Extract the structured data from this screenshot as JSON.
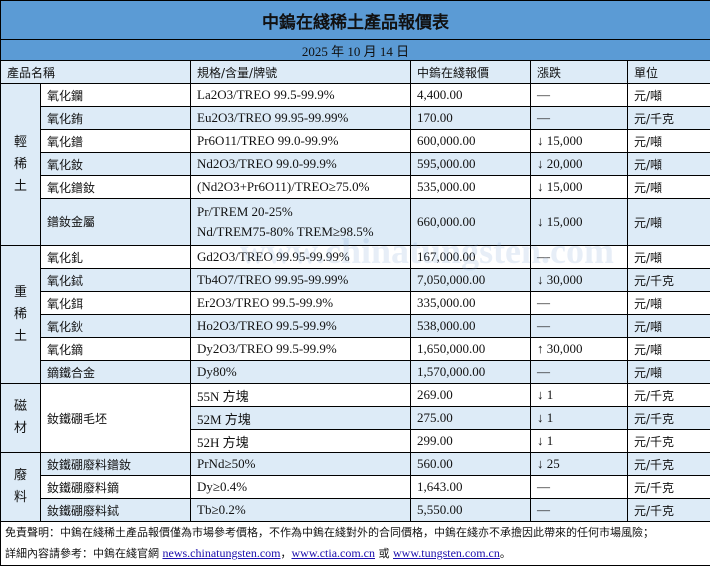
{
  "title": "中鎢在綫稀土產品報價表",
  "date": "2025 年 10 月 14 日",
  "headers": [
    "產品名稱",
    "規格/含量/牌號",
    "中鎢在綫報價",
    "漲跌",
    "單位"
  ],
  "groups": {
    "light": "輕稀土",
    "heavy": "重稀土",
    "magnet": "磁材",
    "waste": "廢料"
  },
  "rows": [
    {
      "name": "氧化鑭",
      "spec": "La2O3/TREO 99.5-99.9%",
      "price": "4,400.00",
      "change": "—",
      "unit": "元/噸"
    },
    {
      "name": "氧化銪",
      "spec": "Eu2O3/TREO 99.95-99.99%",
      "price": "170.00",
      "change": "—",
      "unit": "元/千克"
    },
    {
      "name": "氧化鐠",
      "spec": "Pr6O11/TREO 99.0-99.9%",
      "price": "600,000.00",
      "change": "↓ 15,000",
      "unit": "元/噸"
    },
    {
      "name": "氧化釹",
      "spec": "Nd2O3/TREO 99.0-99.9%",
      "price": "595,000.00",
      "change": "↓ 20,000",
      "unit": "元/噸"
    },
    {
      "name": "氧化鐠釹",
      "spec": "(Nd2O3+Pr6O11)/TREO≥75.0%",
      "price": "535,000.00",
      "change": "↓ 15,000",
      "unit": "元/噸"
    },
    {
      "name": "鐠釹金屬",
      "spec": "Pr/TREM 20-25%",
      "spec2": "Nd/TREM75-80% TREM≥98.5%",
      "price": "660,000.00",
      "change": "↓ 15,000",
      "unit": "元/噸"
    },
    {
      "name": "氧化釓",
      "spec": "Gd2O3/TREO 99.95-99.99%",
      "price": "167,000.00",
      "change": "—",
      "unit": "元/噸"
    },
    {
      "name": "氧化鋱",
      "spec": "Tb4O7/TREO 99.95-99.99%",
      "price": "7,050,000.00",
      "change": "↓ 30,000",
      "unit": "元/千克"
    },
    {
      "name": "氧化鉺",
      "spec": "Er2O3/TREO 99.5-99.9%",
      "price": "335,000.00",
      "change": "—",
      "unit": "元/噸"
    },
    {
      "name": "氧化鈥",
      "spec": "Ho2O3/TREO 99.5-99.9%",
      "price": "538,000.00",
      "change": "—",
      "unit": "元/噸"
    },
    {
      "name": "氧化鏑",
      "spec": "Dy2O3/TREO 99.5-99.9%",
      "price": "1,650,000.00",
      "change": "↑ 30,000",
      "unit": "元/噸"
    },
    {
      "name": "鏑鐵合金",
      "spec": "Dy80%",
      "price": "1,570,000.00",
      "change": "—",
      "unit": "元/噸"
    },
    {
      "name": "釹鐵硼毛坯",
      "spec": "55N 方塊",
      "price": "269.00",
      "change": "↓ 1",
      "unit": "元/千克"
    },
    {
      "spec": "52M 方塊",
      "price": "275.00",
      "change": "↓ 1",
      "unit": "元/千克"
    },
    {
      "spec": "52H 方塊",
      "price": "299.00",
      "change": "↓ 1",
      "unit": "元/千克"
    },
    {
      "name": "釹鐵硼廢料鐠釹",
      "spec": "PrNd≥50%",
      "price": "560.00",
      "change": "↓ 25",
      "unit": "元/千克"
    },
    {
      "name": "釹鐵硼廢料鏑",
      "spec": "Dy≥0.4%",
      "price": "1,643.00",
      "change": "—",
      "unit": "元/千克"
    },
    {
      "name": "釹鐵硼廢料鋱",
      "spec": "Tb≥0.2%",
      "price": "5,550.00",
      "change": "—",
      "unit": "元/千克"
    }
  ],
  "footer": {
    "disclaimer": "免責聲明：中鎢在綫稀土產品報價僅為市場參考價格，不作為中鎢在綫對外的合同價格，中鎢在綫亦不承擔因此帶來的任何市場風險；",
    "details": "詳細內容請參考：中鎢在綫官網 ",
    "link1": "news.chinatungsten.com",
    "sep1": "，",
    "link2": "www.ctia.com.cn",
    "sep2": " 或 ",
    "link3": "www.tungsten.com.cn",
    "end": "。"
  },
  "watermark": "www.chinatungsten.com",
  "colors": {
    "header": "#5b9bd5",
    "stripe": "#ddebf7"
  }
}
